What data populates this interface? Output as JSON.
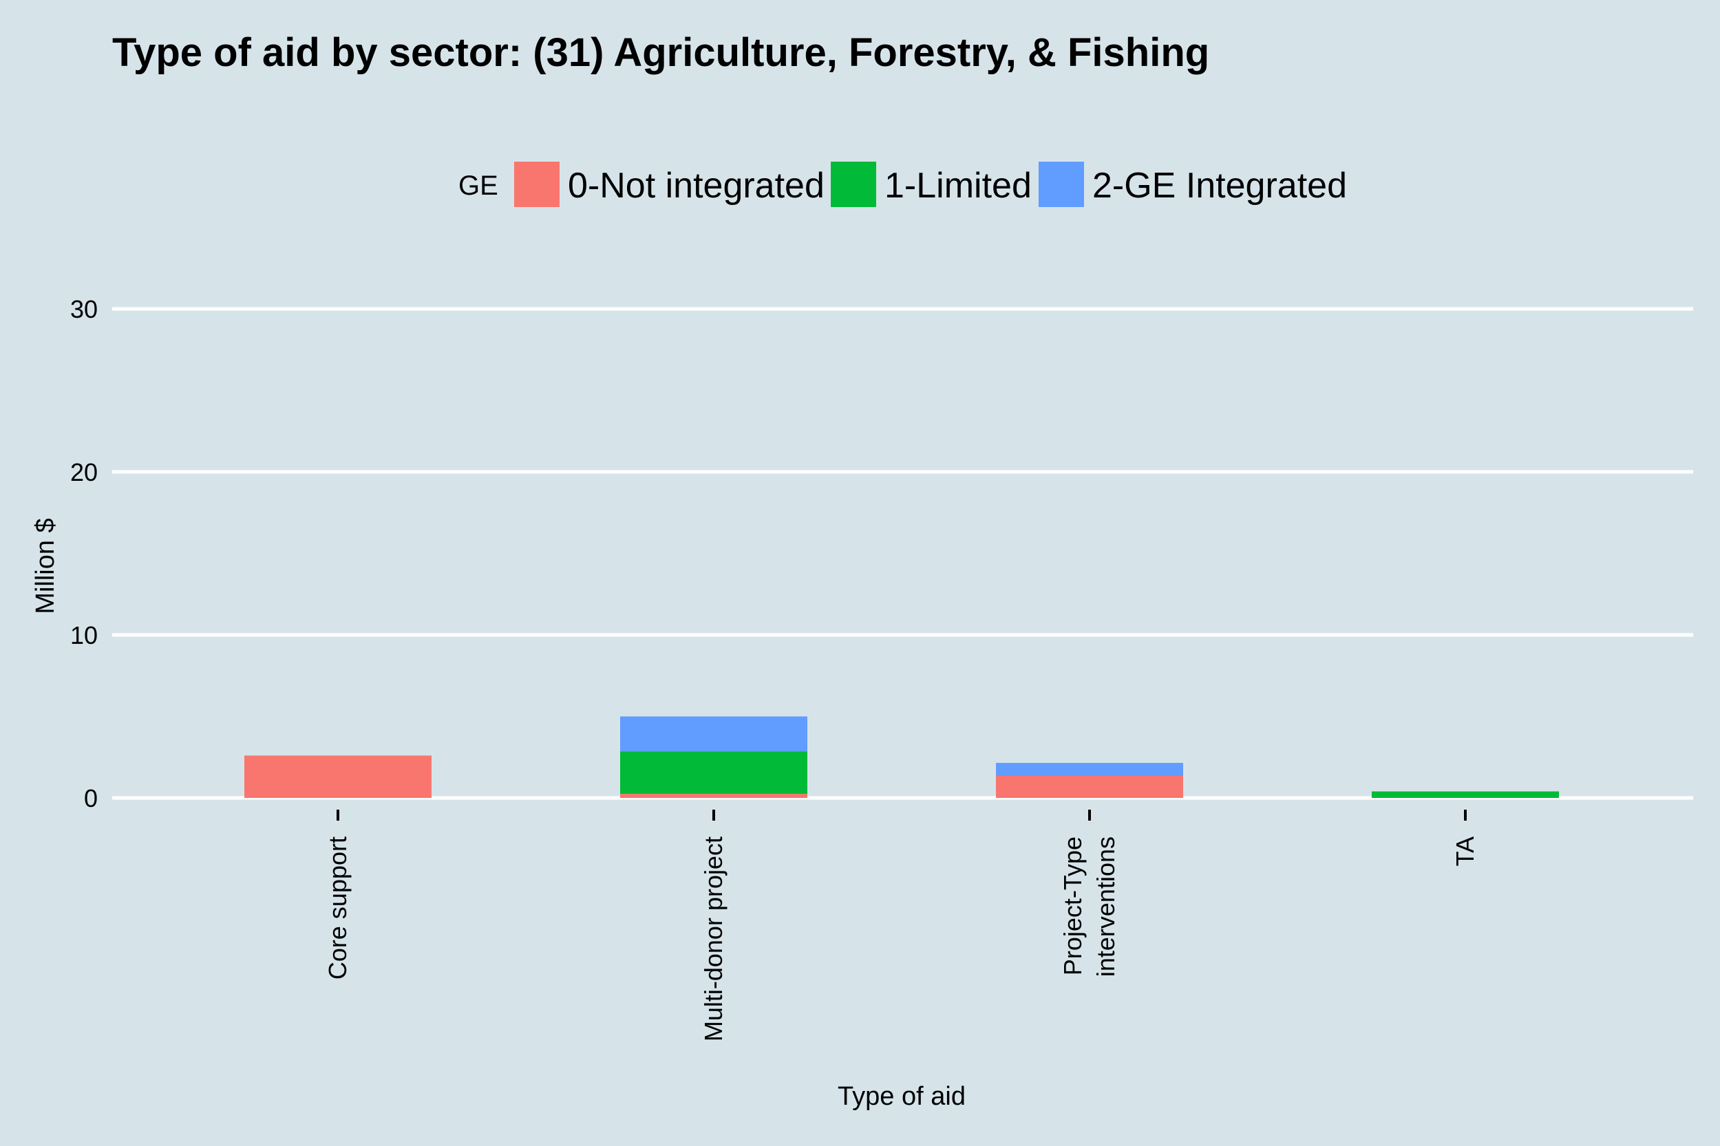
{
  "chart_data": {
    "type": "bar",
    "stacked": true,
    "title": "Type of aid by sector:  (31) Agriculture, Forestry, & Fishing",
    "xlabel": "Type of aid",
    "ylabel": "Million $",
    "ylim": [
      0,
      32
    ],
    "yticks": [
      0,
      10,
      20,
      30
    ],
    "grid": "horizontal",
    "legend": {
      "title": "GE",
      "position": "top"
    },
    "categories": [
      [
        "Core support"
      ],
      [
        "Multi-donor project"
      ],
      [
        "Project-Type",
        "interventions"
      ],
      [
        "TA"
      ]
    ],
    "series": [
      {
        "name": "0-Not integrated",
        "color": "#F8766D",
        "values": [
          2.6,
          0.25,
          1.35,
          0.0
        ]
      },
      {
        "name": "1-Limited",
        "color": "#00BA38",
        "values": [
          0.0,
          2.6,
          0.0,
          0.4
        ]
      },
      {
        "name": "2-GE Integrated",
        "color": "#619CFF",
        "values": [
          0.0,
          2.15,
          0.8,
          0.0
        ]
      }
    ]
  },
  "colors": {
    "background": "#d6e4ea",
    "gridline": "#ffffff",
    "tick": "#000000"
  }
}
